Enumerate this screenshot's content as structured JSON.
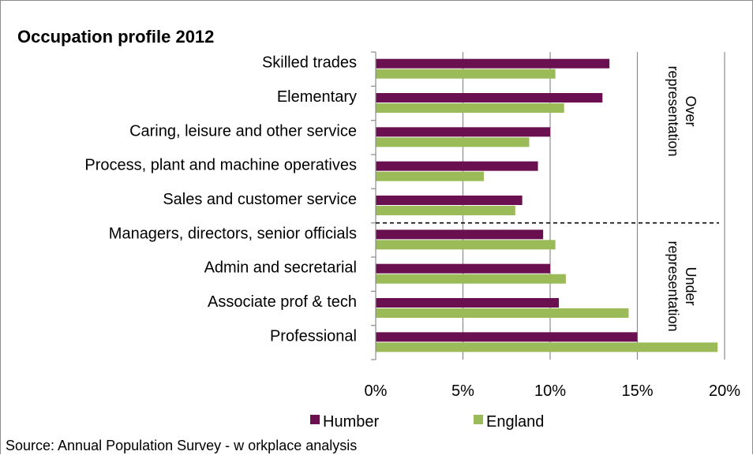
{
  "chart_data": {
    "type": "bar",
    "orientation": "horizontal",
    "title": "Occupation profile 2012",
    "categories": [
      "Skilled trades",
      "Elementary",
      "Caring, leisure and other service",
      "Process, plant and machine operatives",
      "Sales and customer service",
      "Managers, directors, senior officials",
      "Admin and secretarial",
      "Associate prof & tech",
      "Professional"
    ],
    "series": [
      {
        "name": "Humber",
        "color": "#6a0f4f",
        "values": [
          13.4,
          13.0,
          10.0,
          9.3,
          8.4,
          9.6,
          10.0,
          10.5,
          15.0
        ]
      },
      {
        "name": "England",
        "color": "#9bbb59",
        "values": [
          10.3,
          10.8,
          8.8,
          6.2,
          8.0,
          10.3,
          10.9,
          14.5,
          19.6
        ]
      }
    ],
    "xlim": [
      0,
      20
    ],
    "xticks": [
      "0%",
      "5%",
      "10%",
      "15%",
      "20%"
    ],
    "xlabel": "",
    "ylabel": "",
    "grid": "vertical",
    "legend": "bottom",
    "annotations": {
      "over": [
        "Over",
        "representation"
      ],
      "under": [
        "Under",
        "representation"
      ]
    },
    "divider_after_category": "Sales and customer service",
    "source": "Source: Annual Population Survey - w orkplace analysis"
  }
}
